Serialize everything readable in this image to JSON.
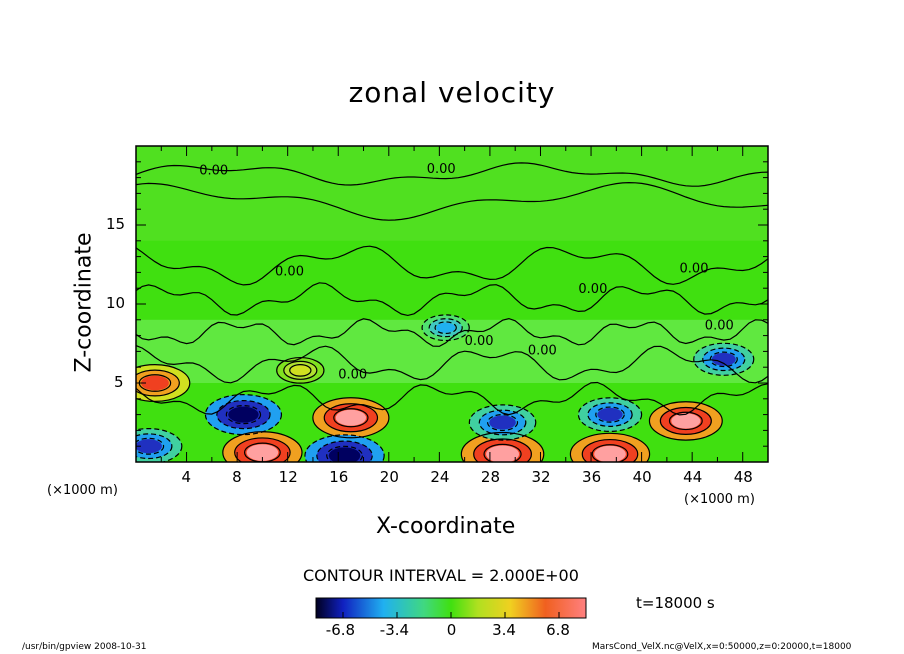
{
  "chart_data": {
    "type": "heatmap",
    "title": "zonal velocity",
    "xlabel": "X-coordinate",
    "ylabel": "Z-coordinate",
    "x_unit_left": "(×1000 m)",
    "x_unit_right": "(×1000 m)",
    "xlim": [
      0,
      50
    ],
    "ylim": [
      0,
      20
    ],
    "x_ticks": [
      4,
      8,
      12,
      16,
      20,
      24,
      28,
      32,
      36,
      40,
      44,
      48
    ],
    "y_ticks": [
      5,
      10,
      15
    ],
    "contour_label": "0.00",
    "contour_interval_text": "CONTOUR INTERVAL = 2.000E+00",
    "time_text": "t=18000 s",
    "colorbar": {
      "min": -8.5,
      "max": 8.5,
      "ticks": [
        "-6.8",
        "-3.4",
        "0",
        "3.4",
        "6.8"
      ]
    },
    "extrema": [
      {
        "x": 1.5,
        "z": 5.0,
        "value": 6.5
      },
      {
        "x": 1.0,
        "z": 1.0,
        "value": -6.0
      },
      {
        "x": 8.5,
        "z": 3.0,
        "value": -7.5
      },
      {
        "x": 10.0,
        "z": 0.6,
        "value": 8.0
      },
      {
        "x": 17.0,
        "z": 2.8,
        "value": 7.5
      },
      {
        "x": 16.5,
        "z": 0.4,
        "value": -8.0
      },
      {
        "x": 29.0,
        "z": 0.5,
        "value": 8.5
      },
      {
        "x": 29.0,
        "z": 2.5,
        "value": -6.0
      },
      {
        "x": 37.5,
        "z": 3.0,
        "value": -5.5
      },
      {
        "x": 37.5,
        "z": 0.5,
        "value": 8.0
      },
      {
        "x": 43.5,
        "z": 2.6,
        "value": 7.0
      },
      {
        "x": 46.5,
        "z": 6.5,
        "value": -5.0
      },
      {
        "x": 24.5,
        "z": 8.5,
        "value": -3.0
      },
      {
        "x": 13.0,
        "z": 5.8,
        "value": 3.0
      }
    ]
  },
  "footer": {
    "left": "/usr/bin/gpview   2008-10-31",
    "right": "MarsCond_VelX.nc@VelX,x=0:50000,z=0:20000,t=18000"
  },
  "colors": {
    "neutral": "#40e010",
    "frame": "#000000"
  }
}
